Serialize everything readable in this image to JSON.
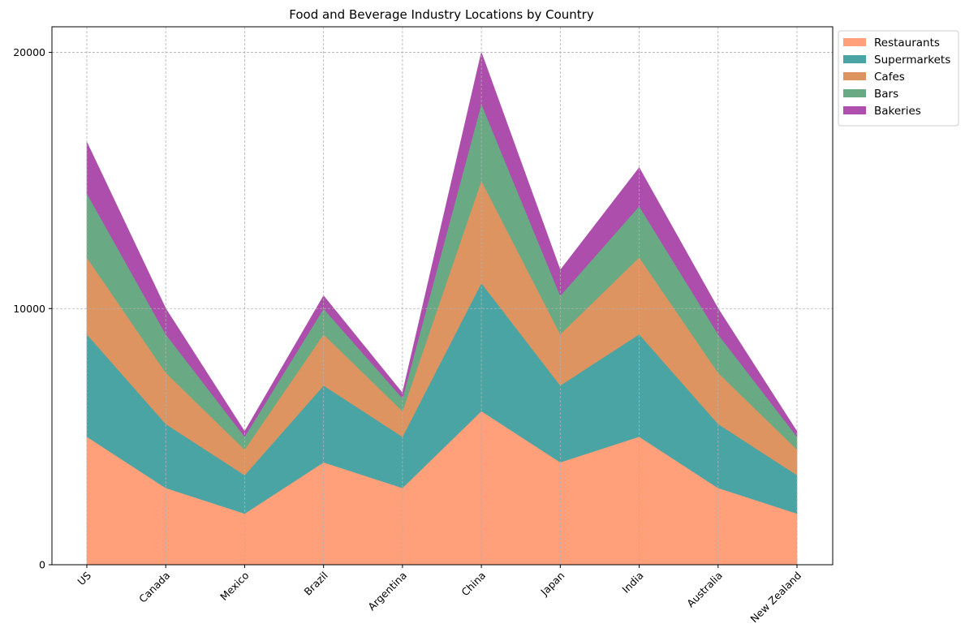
{
  "chart_data": {
    "type": "area",
    "stacked": true,
    "title": "Food and Beverage Industry Locations by Country",
    "xlabel": "",
    "ylabel": "",
    "categories": [
      "US",
      "Canada",
      "Mexico",
      "Brazil",
      "Argentina",
      "China",
      "Japan",
      "India",
      "Australia",
      "New Zealand"
    ],
    "series": [
      {
        "name": "Restaurants",
        "color": "#FFA07A",
        "values": [
          5000,
          3000,
          2000,
          4000,
          3000,
          6000,
          4000,
          5000,
          3000,
          2000
        ]
      },
      {
        "name": "Supermarkets",
        "color": "#4BA4A4",
        "values": [
          4000,
          2500,
          1500,
          3000,
          2000,
          5000,
          3000,
          4000,
          2500,
          1500
        ]
      },
      {
        "name": "Cafes",
        "color": "#DD9460",
        "values": [
          3000,
          2000,
          1000,
          2000,
          1000,
          4000,
          2000,
          3000,
          2000,
          1000
        ]
      },
      {
        "name": "Bars",
        "color": "#69AA85",
        "values": [
          2500,
          1500,
          500,
          1000,
          500,
          3000,
          1500,
          2000,
          1500,
          500
        ]
      },
      {
        "name": "Bakeries",
        "color": "#AD4EAD",
        "values": [
          2000,
          1000,
          200,
          500,
          200,
          2000,
          1000,
          1500,
          1000,
          200
        ]
      }
    ],
    "yticks": [
      0,
      10000,
      20000
    ],
    "ylim": [
      0,
      21000
    ],
    "grid": true,
    "legend_position": "outside top-right"
  }
}
